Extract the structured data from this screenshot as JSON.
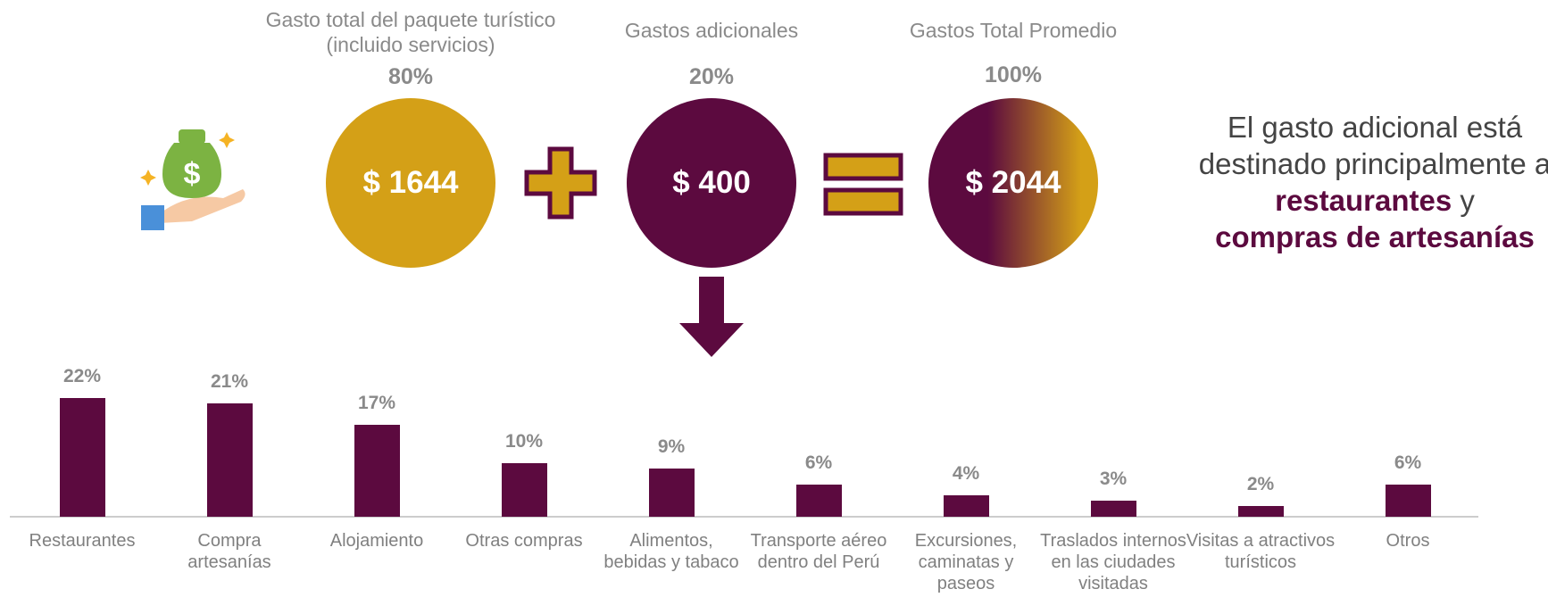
{
  "summary": {
    "items": [
      {
        "heading": "Gasto total del paquete turístico (incluido servicios)",
        "share": "80%",
        "amount": "$ 1644"
      },
      {
        "heading": "Gastos adicionales",
        "share": "20%",
        "amount": "$ 400"
      },
      {
        "heading": "Gastos Total Promedio",
        "share": "100%",
        "amount": "$ 2044"
      }
    ],
    "note": {
      "text": "El gasto adicional está destinado principalmente a",
      "highlight1": "restaurantes",
      "joiner": "y",
      "highlight2": "compras de artesanías"
    }
  },
  "chart_data": {
    "type": "bar",
    "color": "#5c0a3f",
    "categories": [
      "Restaurantes",
      "Compra artesanías",
      "Alojamiento",
      "Otras compras",
      "Alimentos, bebidas y tabaco",
      "Transporte aéreo dentro del Perú",
      "Excursiones, caminatas y paseos",
      "Traslados internos en las ciudades visitadas",
      "Visitas a atractivos turísticos",
      "Otros"
    ],
    "values": [
      22,
      21,
      17,
      10,
      9,
      6,
      4,
      3,
      2,
      6
    ],
    "value_labels": [
      "22%",
      "21%",
      "17%",
      "10%",
      "9%",
      "6%",
      "4%",
      "3%",
      "2%",
      "6%"
    ]
  }
}
